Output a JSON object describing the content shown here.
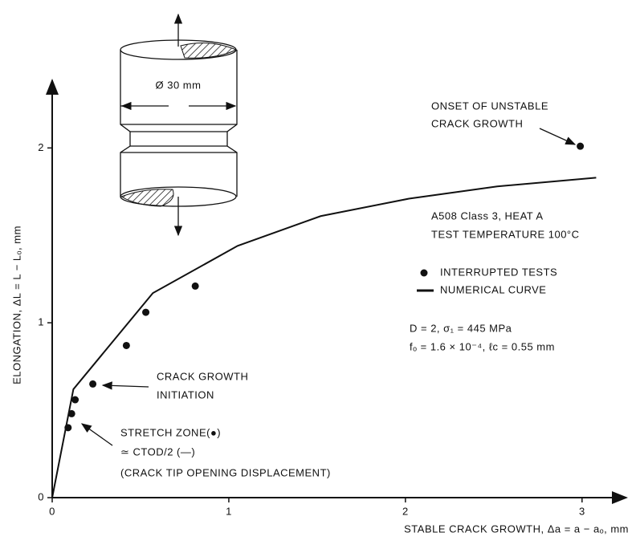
{
  "chart_data": {
    "type": "scatter",
    "xlabel": "STABLE CRACK GROWTH, Δa = a − aₒ, mm",
    "ylabel": "ELONGATION, ΔL = L − Lₒ, mm",
    "xlim": [
      0,
      3.26
    ],
    "ylim": [
      0,
      2.41
    ],
    "xticks": [
      0,
      1,
      2,
      3
    ],
    "yticks": [
      0,
      1,
      2
    ],
    "series": [
      {
        "name": "INTERRUPTED TESTS",
        "style": "markers",
        "color": "#111111",
        "x": [
          0.09,
          0.11,
          0.13,
          0.23,
          0.42,
          0.53,
          0.81,
          2.99
        ],
        "values": [
          0.4,
          0.48,
          0.56,
          0.65,
          0.87,
          1.06,
          1.21,
          2.01
        ]
      },
      {
        "name": "NUMERICAL CURVE",
        "style": "line",
        "color": "#111111",
        "x": [
          0,
          0.12,
          0.57,
          1.05,
          1.52,
          2.02,
          2.52,
          3.08
        ],
        "values": [
          0,
          0.62,
          1.17,
          1.44,
          1.61,
          1.71,
          1.78,
          1.83
        ]
      }
    ],
    "annotations": [
      "ONSET OF UNSTABLE",
      "CRACK GROWTH",
      "A508 Class 3, HEAT A",
      "TEST TEMPERATURE 100°C",
      "D = 2, σ₁ = 445 MPa",
      "fₒ = 1.6 × 10⁻⁴, ℓc = 0.55 mm",
      "CRACK GROWTH",
      "INITIATION",
      "STRETCH ZONE(●)",
      "≃ CTOD/2 (—)",
      "(CRACK TIP OPENING DISPLACEMENT)",
      "Ø 30 mm"
    ]
  }
}
